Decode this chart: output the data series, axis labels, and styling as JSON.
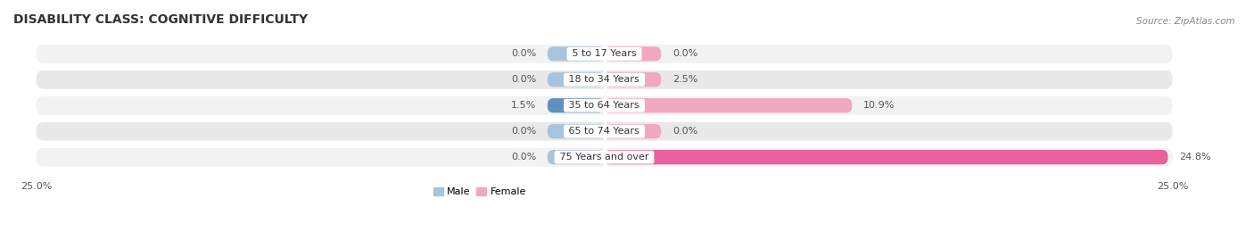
{
  "title": "DISABILITY CLASS: COGNITIVE DIFFICULTY",
  "source": "Source: ZipAtlas.com",
  "categories": [
    "5 to 17 Years",
    "18 to 34 Years",
    "35 to 64 Years",
    "65 to 74 Years",
    "75 Years and over"
  ],
  "male_values": [
    0.0,
    0.0,
    1.5,
    0.0,
    0.0
  ],
  "female_values": [
    0.0,
    2.5,
    10.9,
    0.0,
    24.8
  ],
  "male_color": "#a8c4dc",
  "female_color": "#f0a8bc",
  "male_dark_color": "#6090c0",
  "female_dark_color": "#e8609c",
  "row_bg_color_odd": "#f2f2f2",
  "row_bg_color_even": "#e8e8e8",
  "max_val": 25.0,
  "min_stub": 2.5,
  "title_fontsize": 10,
  "label_fontsize": 8,
  "tick_fontsize": 8,
  "source_fontsize": 7.5,
  "legend_fontsize": 8
}
